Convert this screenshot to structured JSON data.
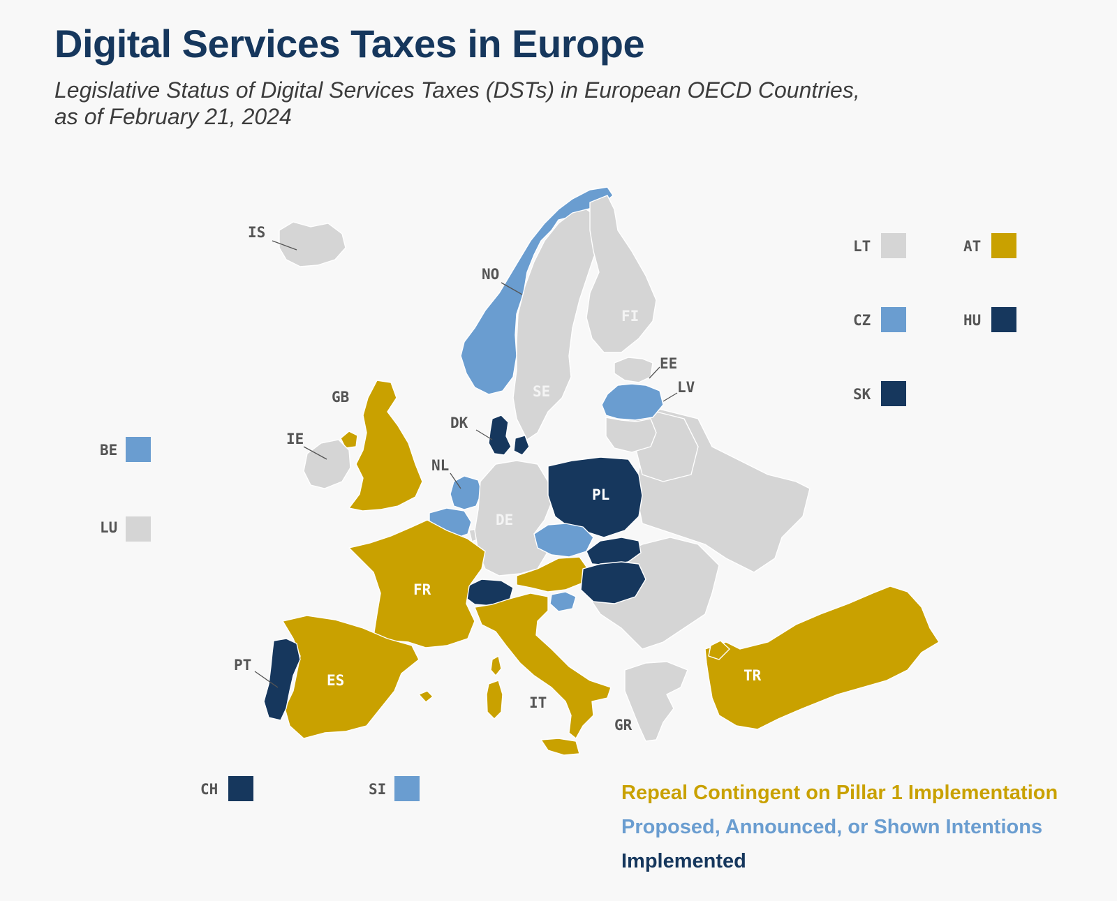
{
  "title": "Digital Services Taxes in Europe",
  "subtitle_line1": "Legislative Status of Digital Services Taxes (DSTs) in European OECD Countries,",
  "subtitle_line2": "as of February 21, 2024",
  "colors": {
    "repeal": "#c9a100",
    "proposed": "#6a9dd0",
    "implemented": "#16375d",
    "no_dst": "#d5d5d5",
    "background": "#f8f8f8"
  },
  "legend": {
    "repeal": "Repeal Contingent on Pillar 1 Implementation",
    "proposed": "Proposed, Announced, or Shown Intentions",
    "implemented": "Implemented"
  },
  "countries": [
    {
      "code": "IS",
      "status": "no_dst"
    },
    {
      "code": "NO",
      "status": "proposed"
    },
    {
      "code": "SE",
      "status": "no_dst"
    },
    {
      "code": "FI",
      "status": "no_dst"
    },
    {
      "code": "EE",
      "status": "no_dst"
    },
    {
      "code": "LV",
      "status": "proposed"
    },
    {
      "code": "LT",
      "status": "no_dst"
    },
    {
      "code": "GB",
      "status": "repeal"
    },
    {
      "code": "IE",
      "status": "no_dst"
    },
    {
      "code": "DK",
      "status": "implemented"
    },
    {
      "code": "NL",
      "status": "proposed"
    },
    {
      "code": "BE",
      "status": "proposed"
    },
    {
      "code": "LU",
      "status": "no_dst"
    },
    {
      "code": "DE",
      "status": "no_dst"
    },
    {
      "code": "PL",
      "status": "implemented"
    },
    {
      "code": "CZ",
      "status": "proposed"
    },
    {
      "code": "SK",
      "status": "implemented"
    },
    {
      "code": "AT",
      "status": "repeal"
    },
    {
      "code": "HU",
      "status": "implemented"
    },
    {
      "code": "SI",
      "status": "proposed"
    },
    {
      "code": "CH",
      "status": "implemented"
    },
    {
      "code": "FR",
      "status": "repeal"
    },
    {
      "code": "ES",
      "status": "repeal"
    },
    {
      "code": "PT",
      "status": "implemented"
    },
    {
      "code": "IT",
      "status": "repeal"
    },
    {
      "code": "GR",
      "status": "no_dst"
    },
    {
      "code": "TR",
      "status": "repeal"
    }
  ],
  "labels": {
    "IS": "IS",
    "NO": "NO",
    "SE": "SE",
    "FI": "FI",
    "EE": "EE",
    "LV": "LV",
    "LT": "LT",
    "GB": "GB",
    "IE": "IE",
    "DK": "DK",
    "NL": "NL",
    "BE": "BE",
    "LU": "LU",
    "DE": "DE",
    "PL": "PL",
    "CZ": "CZ",
    "SK": "SK",
    "AT": "AT",
    "HU": "HU",
    "SI": "SI",
    "CH": "CH",
    "FR": "FR",
    "ES": "ES",
    "PT": "PT",
    "IT": "IT",
    "GR": "GR",
    "TR": "TR"
  }
}
